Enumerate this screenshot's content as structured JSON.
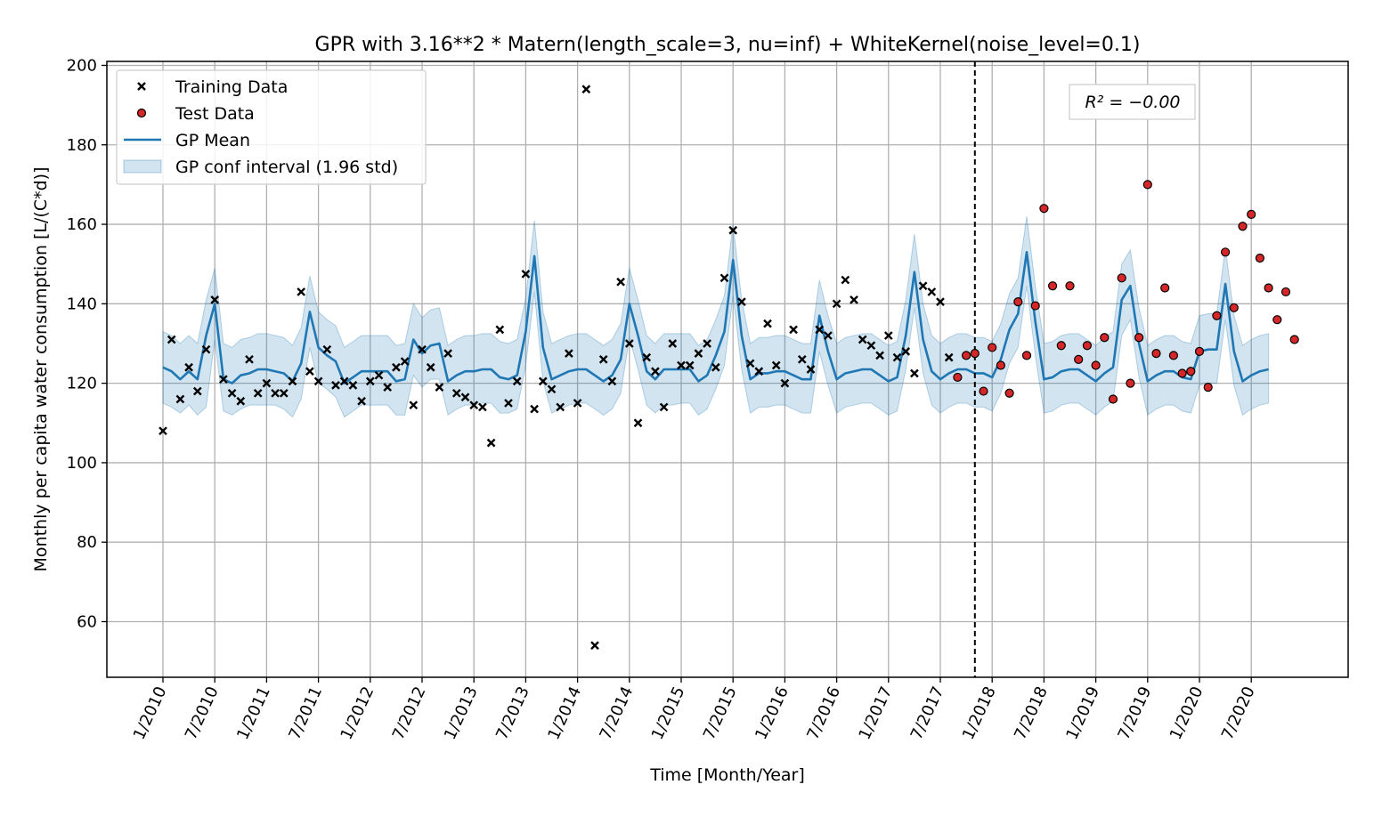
{
  "chart_data": {
    "type": "line",
    "title": "GPR with 3.16**2 * Matern(length_scale=3, nu=inf) + WhiteKernel(noise_level=0.1)",
    "xlabel": "Time [Month/Year]",
    "ylabel": "Monthly per capita water consumption [L/(C*d)]",
    "ylim": [
      46,
      201
    ],
    "yticks": [
      60,
      80,
      100,
      120,
      140,
      160,
      180,
      200
    ],
    "x_start": "1/2010",
    "x_end": "12/2020",
    "xticks": [
      "1/2010",
      "7/2010",
      "1/2011",
      "7/2011",
      "1/2012",
      "7/2012",
      "1/2013",
      "7/2013",
      "1/2014",
      "7/2014",
      "1/2015",
      "7/2015",
      "1/2016",
      "7/2016",
      "1/2017",
      "7/2017",
      "1/2018",
      "7/2018",
      "1/2019",
      "7/2019",
      "1/2020",
      "7/2020"
    ],
    "split_date": "11/2017",
    "grid": true,
    "legend_position": "top-left",
    "annotation": "R² = −0.00",
    "colors": {
      "mean": "#1f77b4",
      "band": "#1f77b4",
      "train": "#000000",
      "test": "#d62728"
    },
    "series": [
      {
        "name": "Training Data",
        "kind": "scatter",
        "values": [
          108,
          131,
          116,
          124,
          118,
          128.5,
          141,
          121,
          117.5,
          115.5,
          126,
          117.5,
          120,
          117.5,
          117.5,
          120.5,
          143,
          123,
          120.5,
          128.5,
          119.5,
          120.5,
          119.5,
          115.5,
          120.5,
          122,
          119,
          124,
          125.5,
          114.5,
          128.5,
          124,
          119,
          127.5,
          117.5,
          116.5,
          114.5,
          114,
          105,
          133.5,
          115,
          120.5,
          147.5,
          113.5,
          120.5,
          118.5,
          114,
          127.5,
          115,
          194,
          54,
          126,
          120.5,
          145.5,
          130,
          110,
          126.5,
          123,
          114,
          130,
          124.5,
          124.5,
          127.5,
          130,
          124,
          146.5,
          158.5,
          140.5,
          125,
          123,
          135,
          124.5,
          120,
          133.5,
          126,
          123.5,
          133.5,
          132,
          140,
          146,
          141,
          131,
          129.5,
          127,
          132,
          126.5,
          128,
          122.5,
          144.5,
          143,
          140.5,
          126.5
        ]
      },
      {
        "name": "Test Data",
        "kind": "scatter",
        "values": [
          121.5,
          127,
          127.5,
          118,
          129,
          124.5,
          117.5,
          140.5,
          127,
          139.5,
          164,
          144.5,
          129.5,
          144.5,
          126,
          129.5,
          124.5,
          131.5,
          116,
          146.5,
          120,
          131.5,
          170,
          127.5,
          144,
          127,
          122.5,
          123,
          128,
          119,
          137,
          153,
          139,
          159.5,
          162.5,
          151.5,
          144,
          136,
          143,
          131
        ]
      },
      {
        "name": "GP Mean",
        "kind": "line",
        "values": [
          124,
          123,
          121,
          123,
          121,
          132,
          140,
          121,
          120,
          122,
          122.5,
          123.5,
          123.5,
          123,
          122.5,
          120.5,
          125,
          138,
          129,
          127,
          125.5,
          120,
          121.5,
          123,
          123,
          123,
          123,
          120.5,
          121,
          131,
          127.5,
          129.5,
          130,
          120.5,
          122,
          123,
          123,
          123.5,
          123.5,
          121.5,
          121,
          122,
          133,
          152,
          129,
          121,
          122,
          123,
          123.5,
          123.5,
          122,
          120.5,
          122,
          126,
          140,
          132,
          123,
          121,
          123.5,
          123.5,
          123.5,
          123.5,
          120.5,
          122,
          127,
          133,
          151,
          132,
          121,
          122.5,
          122.5,
          123,
          123,
          122,
          121,
          121,
          137,
          128,
          121,
          122.5,
          123,
          123.5,
          123.5,
          122,
          120.5,
          121.5,
          132,
          148,
          131,
          123,
          121,
          122.5,
          123.5,
          123.5,
          122.5,
          122.5,
          121.5,
          126,
          133.5,
          137.5,
          153,
          135.5,
          121,
          121.5,
          123,
          123.5,
          123.5,
          122,
          120.5,
          122.5,
          124,
          141,
          144.5,
          130,
          120.5,
          122,
          123,
          123,
          121.5,
          121,
          128,
          128.5,
          128.5,
          145,
          128,
          120.5,
          122,
          123,
          123.5
        ]
      },
      {
        "name": "GP conf interval (1.96 std)",
        "kind": "band",
        "lower": [
          115,
          114,
          112.5,
          114.5,
          112,
          114,
          131,
          113,
          112,
          113.5,
          114.5,
          114.5,
          114.5,
          114.5,
          113.5,
          111.5,
          116,
          129,
          120,
          118.5,
          116.5,
          111.5,
          113,
          114.5,
          114.5,
          114.5,
          114.5,
          112,
          112,
          122,
          119,
          121,
          121,
          112,
          113.5,
          114.5,
          114.5,
          115,
          115,
          112.5,
          112.5,
          113.5,
          124.5,
          143,
          120.5,
          112.5,
          113.5,
          114.5,
          115,
          115,
          113.5,
          112,
          113.5,
          117.5,
          131.5,
          123.5,
          114.5,
          112.5,
          114.5,
          114.5,
          115,
          115,
          112,
          113.5,
          118.5,
          124.5,
          142,
          123.5,
          112.5,
          114,
          114,
          114.5,
          114.5,
          113.5,
          112.5,
          112.5,
          128,
          119.5,
          112.5,
          114,
          114.5,
          115,
          115,
          113.5,
          112,
          113,
          123.5,
          139,
          122.5,
          114.5,
          112.5,
          114,
          115,
          115,
          114,
          114,
          113,
          117.5,
          125,
          129,
          144.5,
          127,
          112.5,
          113,
          114.5,
          115,
          115,
          113.5,
          112,
          114,
          115.5,
          132,
          136,
          121.5,
          112,
          113.5,
          114.5,
          114.5,
          113,
          112.5,
          119.5,
          120,
          120,
          136,
          119.5,
          112,
          113.5,
          114.5,
          115
        ],
        "upper": [
          133,
          132,
          130,
          132,
          130,
          141,
          149,
          130,
          129,
          131,
          131.5,
          132.5,
          132.5,
          132,
          131.5,
          129.5,
          134,
          147,
          138,
          136,
          134.5,
          129,
          130.5,
          132,
          132,
          132,
          132,
          129.5,
          130,
          140,
          136.5,
          138.5,
          139,
          129.5,
          131,
          132,
          132,
          132.5,
          132.5,
          130.5,
          130,
          131,
          141.5,
          161,
          138,
          130,
          131,
          132,
          132.5,
          132.5,
          131,
          129.5,
          131,
          135,
          149,
          141,
          132,
          130,
          132.5,
          132.5,
          132.5,
          132.5,
          129.5,
          131,
          136,
          142,
          160,
          141,
          130,
          131.5,
          131.5,
          132,
          132,
          131,
          130,
          130,
          146,
          137,
          130,
          131.5,
          132,
          132.5,
          132.5,
          131,
          129.5,
          130.5,
          141,
          157.5,
          140,
          132,
          130,
          131.5,
          132.5,
          132.5,
          131.5,
          131.5,
          130.5,
          135,
          142.5,
          146.5,
          162,
          144.5,
          130,
          130.5,
          132,
          132.5,
          132.5,
          131,
          129.5,
          131.5,
          133,
          150,
          153.5,
          139,
          129.5,
          131,
          132,
          132,
          130.5,
          130,
          137,
          137.5,
          137.5,
          154,
          137,
          129.5,
          131,
          132,
          132.5
        ]
      }
    ]
  }
}
